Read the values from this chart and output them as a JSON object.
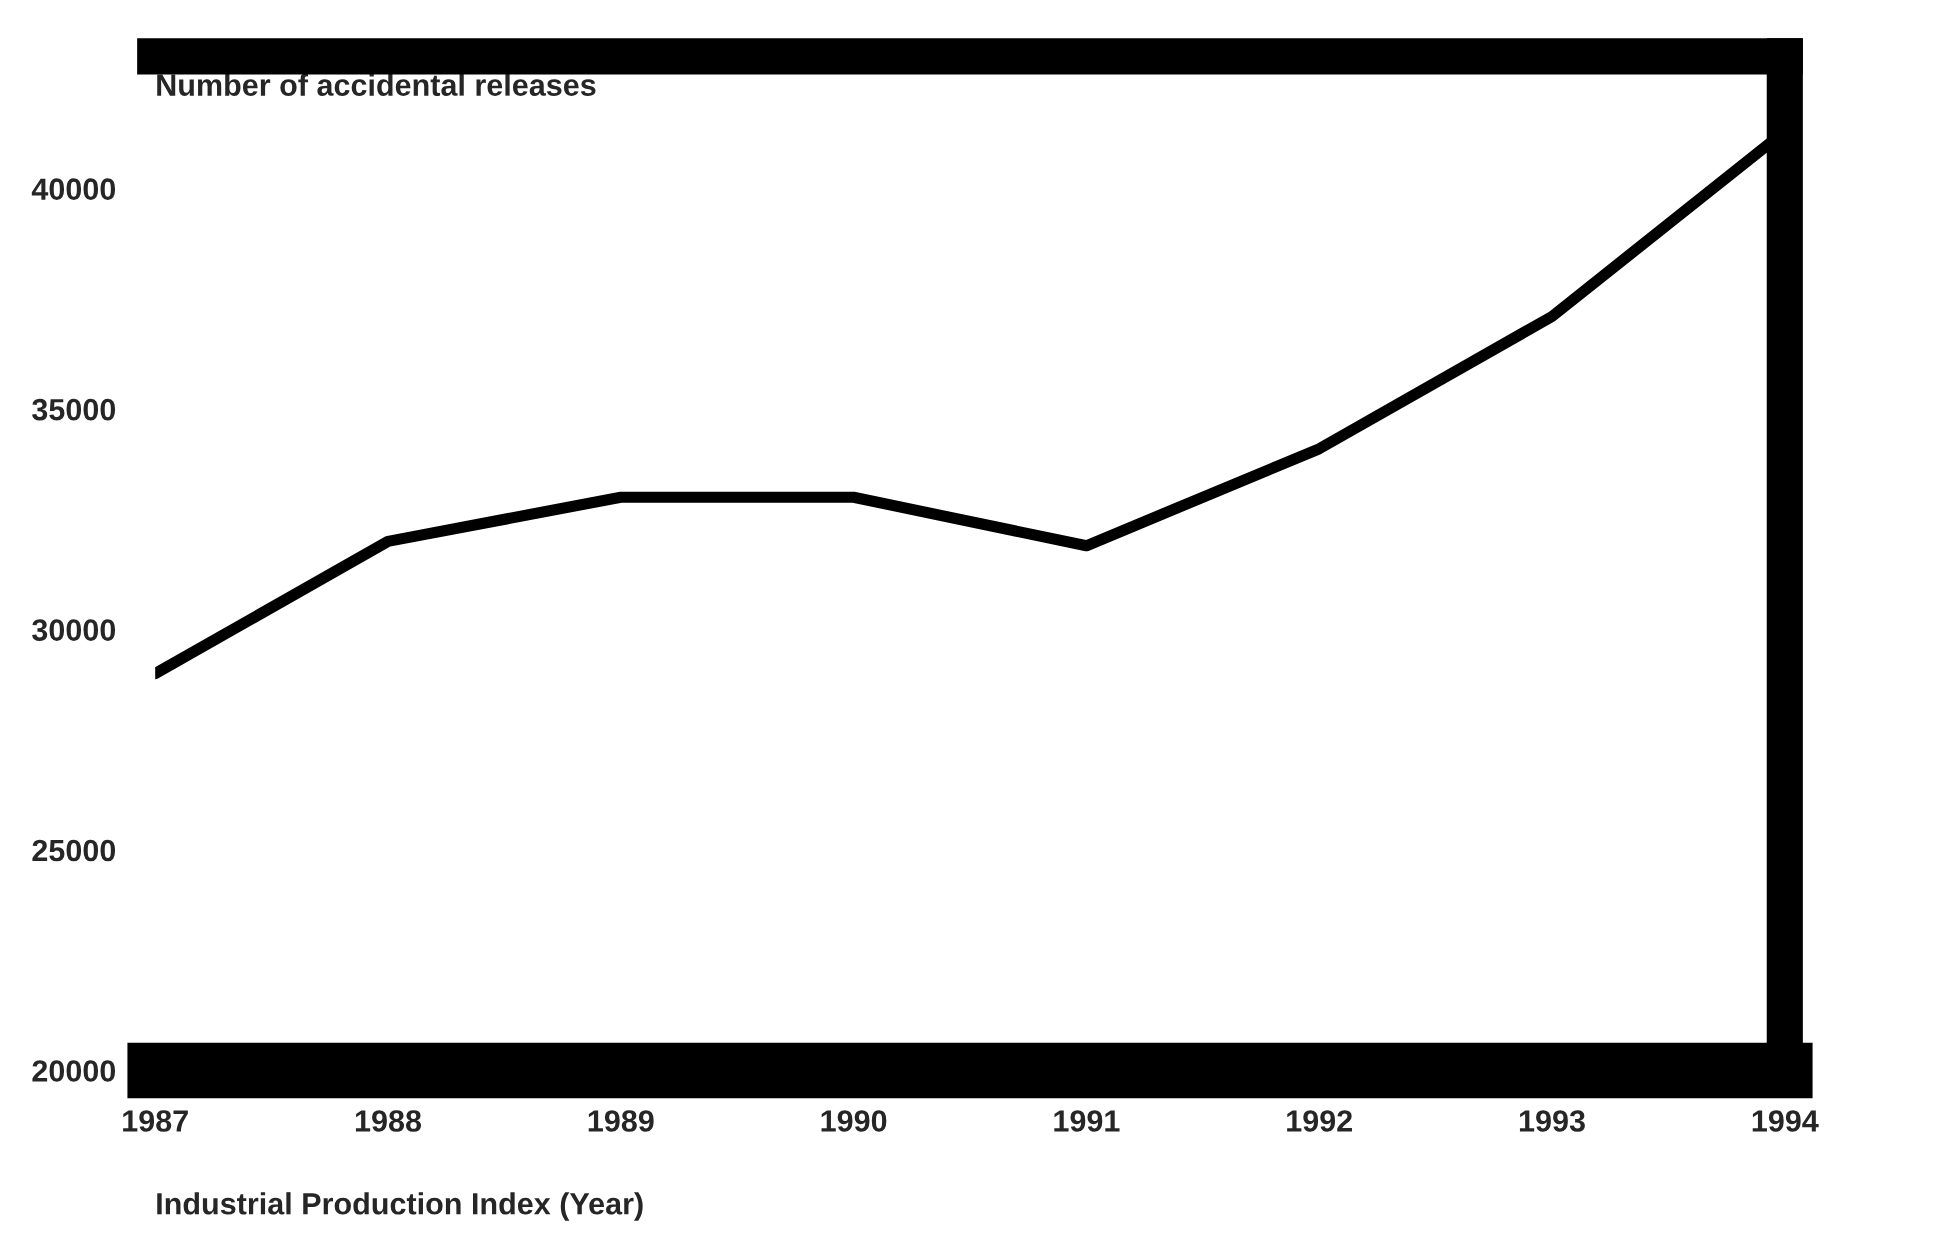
{
  "chart_data": {
    "type": "line",
    "ylabel": "Number of accidental releases",
    "xlabel": "Industrial Production Index (Year)",
    "categories": [
      "1987",
      "1988",
      "1989",
      "1990",
      "1991",
      "1992",
      "1993",
      "1994"
    ],
    "series": [
      {
        "color": "#000000",
        "values": [
          29000,
          32000,
          33000,
          33000,
          31900,
          34100,
          37100,
          41300
        ]
      }
    ],
    "ylim": [
      20000,
      43000
    ],
    "yticks": [
      20000,
      25000,
      30000,
      35000,
      40000
    ],
    "grid": false,
    "marker": "none",
    "line_style": "solid"
  }
}
